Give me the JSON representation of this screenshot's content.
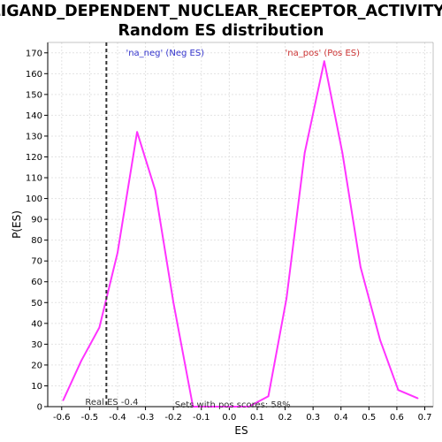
{
  "chart_data": {
    "type": "line",
    "title_line1": "LIGAND_DEPENDENT_NUCLEAR_RECEPTOR_ACTIVITY:",
    "title_line2": "Random ES distribution",
    "xlabel": "ES",
    "ylabel": "P(ES)",
    "xlim": [
      -0.65,
      0.73
    ],
    "ylim": [
      0,
      175
    ],
    "x_ticks": [
      -0.6,
      -0.5,
      -0.4,
      -0.3,
      -0.2,
      -0.1,
      0.0,
      0.1,
      0.2,
      0.3,
      0.4,
      0.5,
      0.6,
      0.7
    ],
    "x_tick_labels": [
      "-0.6",
      "-0.5",
      "-0.4",
      "-0.3",
      "-0.2",
      "-0.1",
      "0.0",
      "0.1",
      "0.2",
      "0.3",
      "0.4",
      "0.5",
      "0.6",
      "0.7"
    ],
    "y_ticks": [
      0,
      10,
      20,
      30,
      40,
      50,
      60,
      70,
      80,
      90,
      100,
      110,
      120,
      130,
      140,
      150,
      160,
      170
    ],
    "y_tick_labels": [
      "0",
      "10",
      "20",
      "30",
      "40",
      "50",
      "60",
      "70",
      "80",
      "90",
      "100",
      "110",
      "120",
      "130",
      "140",
      "150",
      "160",
      "170"
    ],
    "grid": true,
    "line_color": "#ff33ff",
    "series": [
      {
        "values": [
          {
            "x": -0.595,
            "y": 3
          },
          {
            "x": -0.53,
            "y": 22
          },
          {
            "x": -0.465,
            "y": 38
          },
          {
            "x": -0.4,
            "y": 74
          },
          {
            "x": -0.33,
            "y": 132
          },
          {
            "x": -0.265,
            "y": 104
          },
          {
            "x": -0.2,
            "y": 50
          },
          {
            "x": -0.13,
            "y": 0
          },
          {
            "x": -0.065,
            "y": 0
          },
          {
            "x": 0.0,
            "y": 0
          },
          {
            "x": 0.07,
            "y": 0
          },
          {
            "x": 0.14,
            "y": 5
          },
          {
            "x": 0.205,
            "y": 52
          },
          {
            "x": 0.27,
            "y": 122
          },
          {
            "x": 0.34,
            "y": 166
          },
          {
            "x": 0.405,
            "y": 122
          },
          {
            "x": 0.47,
            "y": 67
          },
          {
            "x": 0.54,
            "y": 32
          },
          {
            "x": 0.605,
            "y": 8
          },
          {
            "x": 0.675,
            "y": 4
          }
        ]
      }
    ],
    "real_es": {
      "x": -0.44,
      "label": "Real ES -0.4",
      "color": "#333333"
    },
    "annotations": [
      {
        "text": "'na_neg' (Neg ES)",
        "x": -0.37,
        "y": 170,
        "color": "#3333cc"
      },
      {
        "text": "'na_pos' (Pos ES)",
        "x": 0.2,
        "y": 170,
        "color": "#cc3333"
      },
      {
        "text": "Sets with pos scores: 58%",
        "x": -0.195,
        "y": 0.8,
        "color": "#333333"
      }
    ]
  }
}
